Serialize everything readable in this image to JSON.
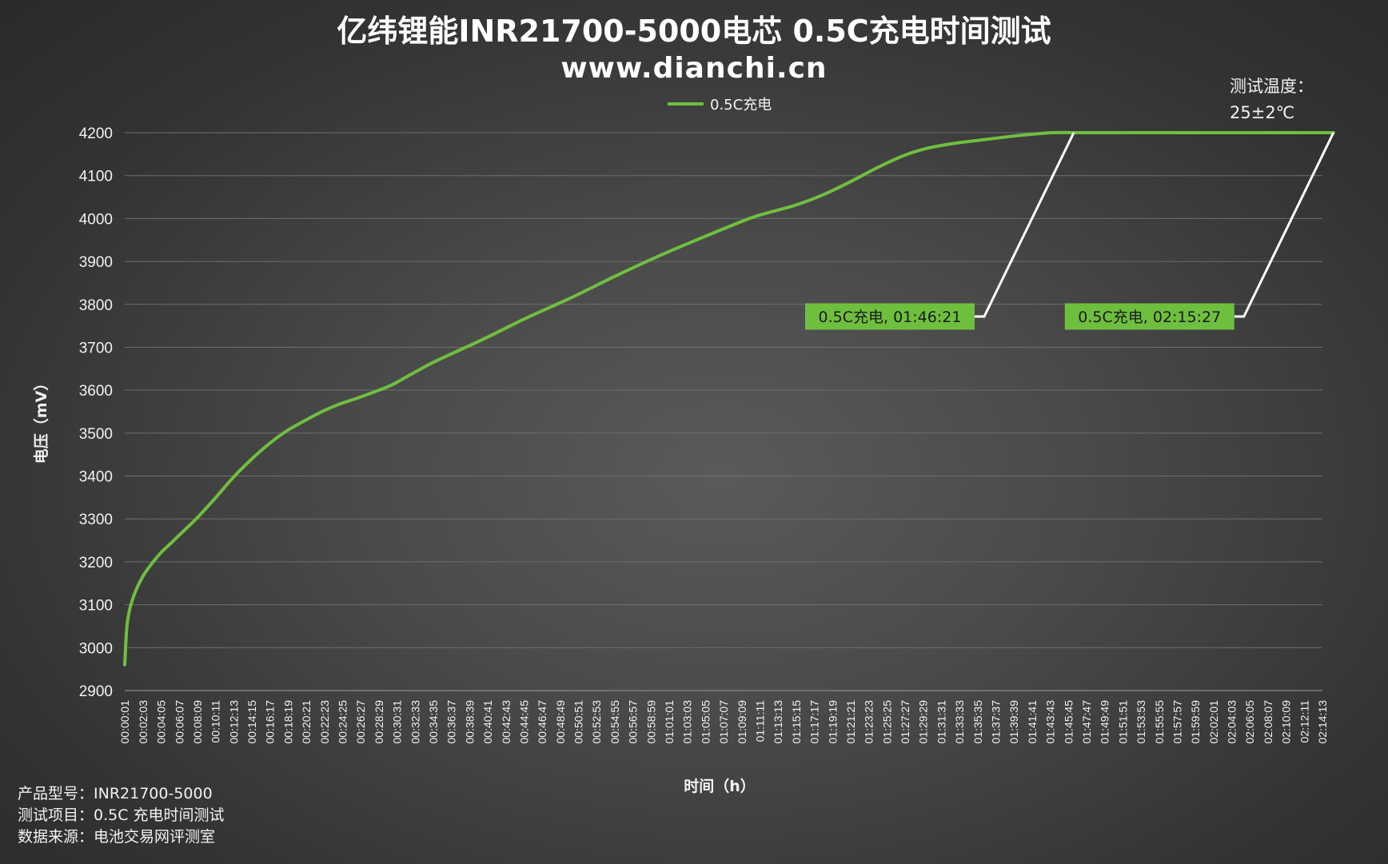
{
  "chart_data": {
    "type": "line",
    "title": "亿纬锂能INR21700-5000电芯 0.5C充电时间测试",
    "subtitle": "www.dianchi.cn",
    "xlabel": "时间（h）",
    "ylabel": "电压（mV）",
    "ylim": [
      2900,
      4200
    ],
    "yticks": [
      2900,
      3000,
      3100,
      3200,
      3300,
      3400,
      3500,
      3600,
      3700,
      3800,
      3900,
      4000,
      4100,
      4200
    ],
    "grid": true,
    "legend_position": "top",
    "x_labels": [
      "00:00:01",
      "00:02:03",
      "00:04:05",
      "00:06:07",
      "00:08:09",
      "00:10:11",
      "00:12:13",
      "00:14:15",
      "00:16:17",
      "00:18:19",
      "00:20:21",
      "00:22:23",
      "00:24:25",
      "00:26:27",
      "00:28:29",
      "00:30:31",
      "00:32:33",
      "00:34:35",
      "00:36:37",
      "00:38:39",
      "00:40:41",
      "00:42:43",
      "00:44:45",
      "00:46:47",
      "00:48:49",
      "00:50:51",
      "00:52:53",
      "00:54:55",
      "00:56:57",
      "00:58:59",
      "01:01:01",
      "01:03:03",
      "01:05:05",
      "01:07:07",
      "01:09:09",
      "01:11:11",
      "01:13:13",
      "01:15:15",
      "01:17:17",
      "01:19:19",
      "01:21:21",
      "01:23:23",
      "01:25:25",
      "01:27:27",
      "01:29:29",
      "01:31:31",
      "01:33:33",
      "01:35:35",
      "01:37:37",
      "01:39:39",
      "01:41:41",
      "01:43:43",
      "01:45:45",
      "01:47:47",
      "01:49:49",
      "01:51:51",
      "01:53:53",
      "01:55:55",
      "01:57:57",
      "01:59:59",
      "02:02:01",
      "02:04:03",
      "02:06:05",
      "02:08:07",
      "02:10:09",
      "02:12:11",
      "02:14:13"
    ],
    "series": [
      {
        "name": "0.5C充电",
        "color": "#6fbf3f",
        "x_minutes": [
          0,
          0.3,
          1,
          2,
          3,
          4,
          5,
          6,
          8,
          10,
          12,
          14,
          16,
          18,
          20,
          22,
          24,
          26,
          28,
          30,
          32,
          35,
          40,
          45,
          50,
          55,
          60,
          65,
          70,
          72,
          75,
          78,
          80,
          82,
          84,
          86,
          88,
          90,
          92,
          94,
          96,
          98,
          100,
          102,
          104,
          106.35,
          110,
          120,
          130,
          135.45
        ],
        "values": [
          2960,
          3060,
          3120,
          3165,
          3195,
          3220,
          3240,
          3260,
          3300,
          3345,
          3393,
          3435,
          3472,
          3503,
          3527,
          3549,
          3567,
          3581,
          3596,
          3613,
          3636,
          3669,
          3717,
          3768,
          3815,
          3866,
          3914,
          3958,
          4000,
          4013,
          4030,
          4053,
          4072,
          4093,
          4115,
          4135,
          4152,
          4164,
          4172,
          4178,
          4183,
          4188,
          4193,
          4197,
          4200,
          4200,
          4200,
          4200,
          4200,
          4200
        ]
      }
    ],
    "annotations": [
      {
        "text": "0.5C充电, 01:46:21",
        "x_minutes": 106.35,
        "y": 4200
      },
      {
        "text": "0.5C充电, 02:15:27",
        "x_minutes": 135.45,
        "y": 4200
      }
    ],
    "note": [
      "测试温度：",
      "25±2℃"
    ]
  },
  "footer": {
    "line1": "产品型号：INR21700-5000",
    "line2": "测试项目：0.5C 充电时间测试",
    "line3": "数据来源：电池交易网评测室"
  },
  "colors": {
    "line": "#6fbf3f",
    "grid": "#6e6e6e",
    "callout": "#ffffff",
    "label_bg": "#6fbf3f"
  }
}
